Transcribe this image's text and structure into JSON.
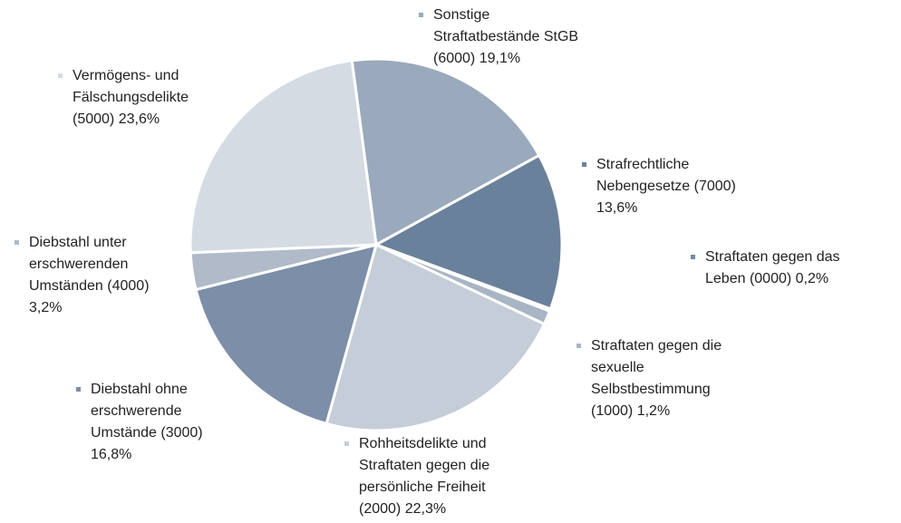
{
  "chart_data": {
    "type": "pie",
    "categories": [
      "Sonstige Straftatbestände StGB (6000)",
      "Strafrechtliche Nebengesetze (7000)",
      "Straftaten gegen das Leben (0000)",
      "Straftaten gegen die sexuelle Selbstbestimmung (1000)",
      "Rohheitsdelikte und Straftaten gegen die persönliche Freiheit (2000)",
      "Diebstahl ohne erschwerende Umstände (3000)",
      "Diebstahl unter erschwerenden Umständen (4000)",
      "Vermögens- und Fälschungsdelikte (5000)"
    ],
    "values": [
      19.1,
      13.6,
      0.2,
      1.2,
      22.3,
      16.8,
      3.2,
      23.6
    ],
    "value_labels": [
      "19,1%",
      "13,6%",
      "0,2%",
      "1,2%",
      "22,3%",
      "16,8%",
      "3,2%",
      "23,6%"
    ],
    "colors": [
      "#9aa9bb",
      "#6a819b",
      "#7489a3",
      "#a8b5c5",
      "#c5cdd8",
      "#7c8ea8",
      "#b0bac8",
      "#d5dbe3"
    ]
  }
}
